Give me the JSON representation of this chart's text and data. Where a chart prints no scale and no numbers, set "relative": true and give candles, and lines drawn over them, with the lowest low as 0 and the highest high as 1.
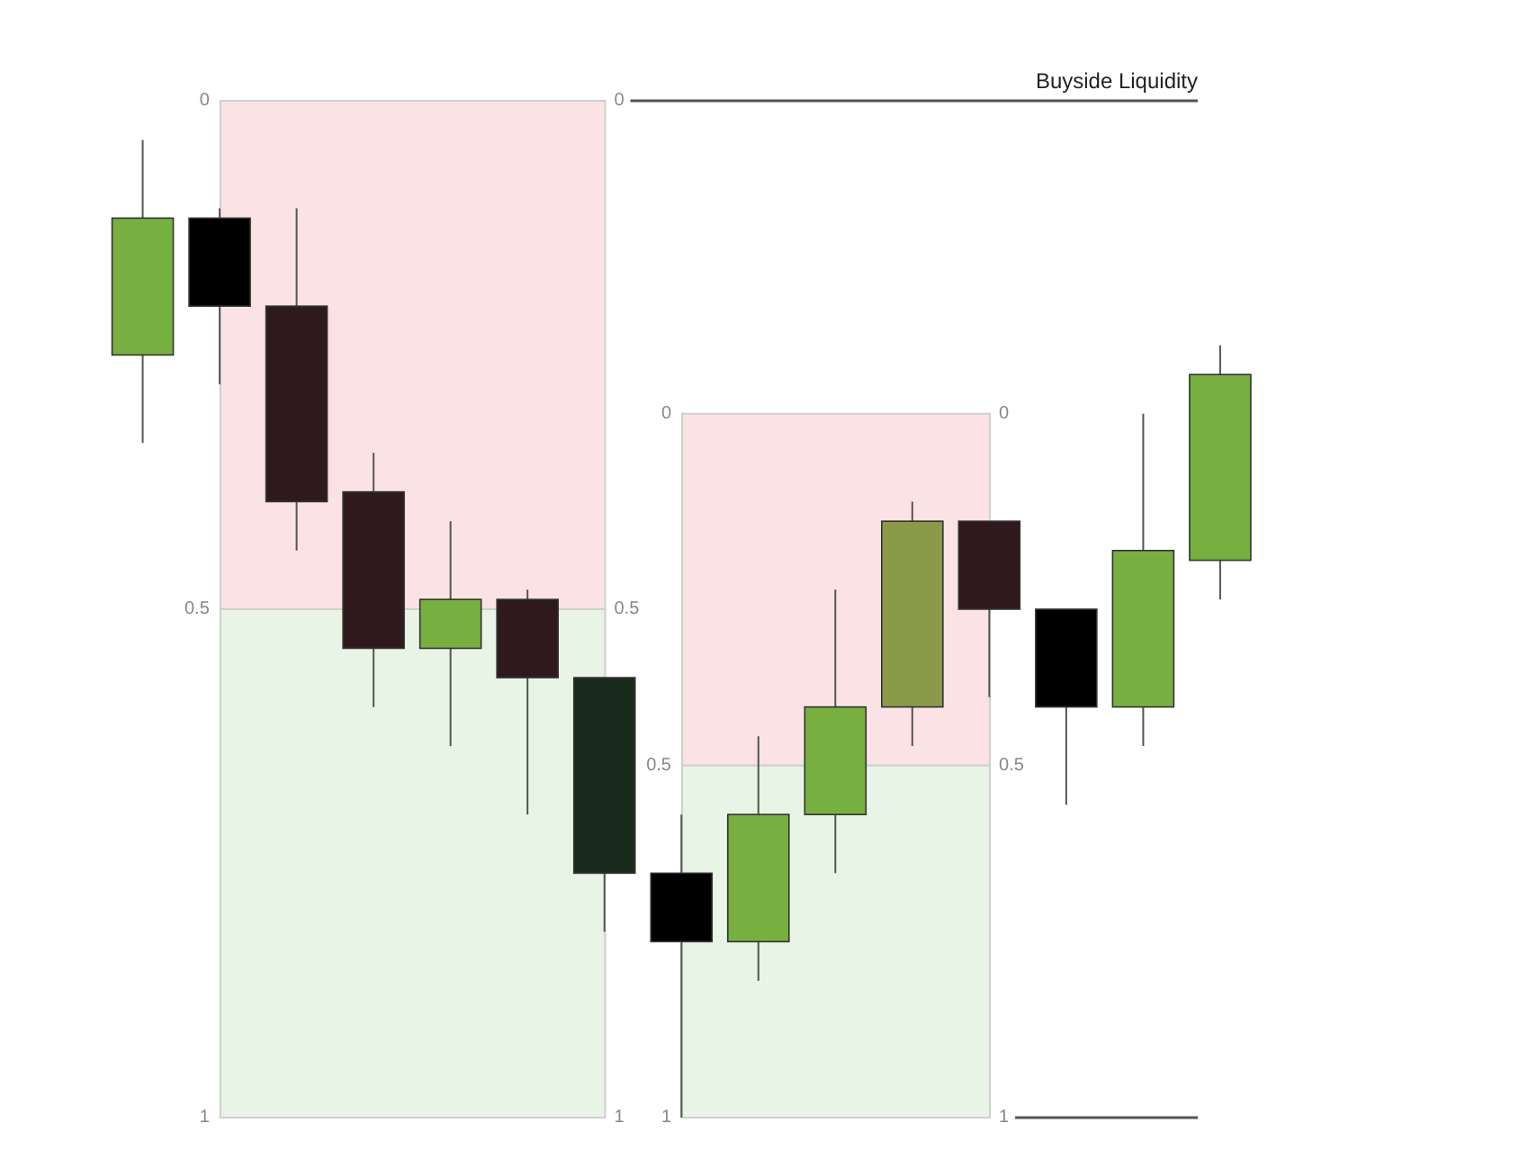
{
  "chart_data": {
    "type": "candlestick",
    "relative": true,
    "categories": [
      null,
      null,
      null,
      null,
      null,
      null,
      null,
      null,
      null,
      null,
      null,
      null,
      null,
      null,
      null
    ],
    "ohlc": [
      [
        0.78,
        1.0,
        0.69,
        0.92
      ],
      [
        0.92,
        0.93,
        0.75,
        0.83
      ],
      [
        0.83,
        0.93,
        0.58,
        0.63
      ],
      [
        0.64,
        0.68,
        0.42,
        0.48
      ],
      [
        0.48,
        0.61,
        0.38,
        0.53
      ],
      [
        0.53,
        0.54,
        0.31,
        0.45
      ],
      [
        0.45,
        0.45,
        0.19,
        0.25
      ],
      [
        0.25,
        0.31,
        0.0,
        0.18
      ],
      [
        0.18,
        0.39,
        0.14,
        0.31
      ],
      [
        0.31,
        0.54,
        0.25,
        0.42
      ],
      [
        0.42,
        0.63,
        0.38,
        0.61
      ],
      [
        0.61,
        0.61,
        0.43,
        0.52
      ],
      [
        0.52,
        0.52,
        0.32,
        0.42
      ],
      [
        0.42,
        0.72,
        0.38,
        0.58
      ],
      [
        0.57,
        0.79,
        0.53,
        0.76
      ]
    ],
    "colors": [
      "#77b041",
      "#000000",
      "#2e1a1c",
      "#2e1a1c",
      "#77b041",
      "#2e1a1c",
      "#1a2a1c",
      "#000000",
      "#77b041",
      "#77b041",
      "#8a9a48",
      "#2e1a1c",
      "#000000",
      "#77b041",
      "#77b041"
    ],
    "bands": [
      {
        "axis": "y",
        "from": 0.52,
        "to": 1.04,
        "color": "#fbe3e5"
      },
      {
        "axis": "y",
        "from": 0,
        "to": 0.52,
        "color": "#e8f4e5"
      },
      {
        "axis": "y",
        "from": 0.36,
        "to": 0.72,
        "color": "#fbe3e5"
      },
      {
        "axis": "y",
        "from": 0,
        "to": 0.36,
        "color": "#e8f4e5"
      }
    ],
    "ref_lines": [
      {
        "axis": "y",
        "value": 1.04,
        "label": "Buyside Liquidity",
        "color": "#555555"
      },
      {
        "axis": "y",
        "value": 0,
        "label": null,
        "color": "#555555"
      }
    ],
    "annotations": [
      "0",
      "0.5",
      "1",
      "0",
      "0.5",
      "1"
    ]
  }
}
